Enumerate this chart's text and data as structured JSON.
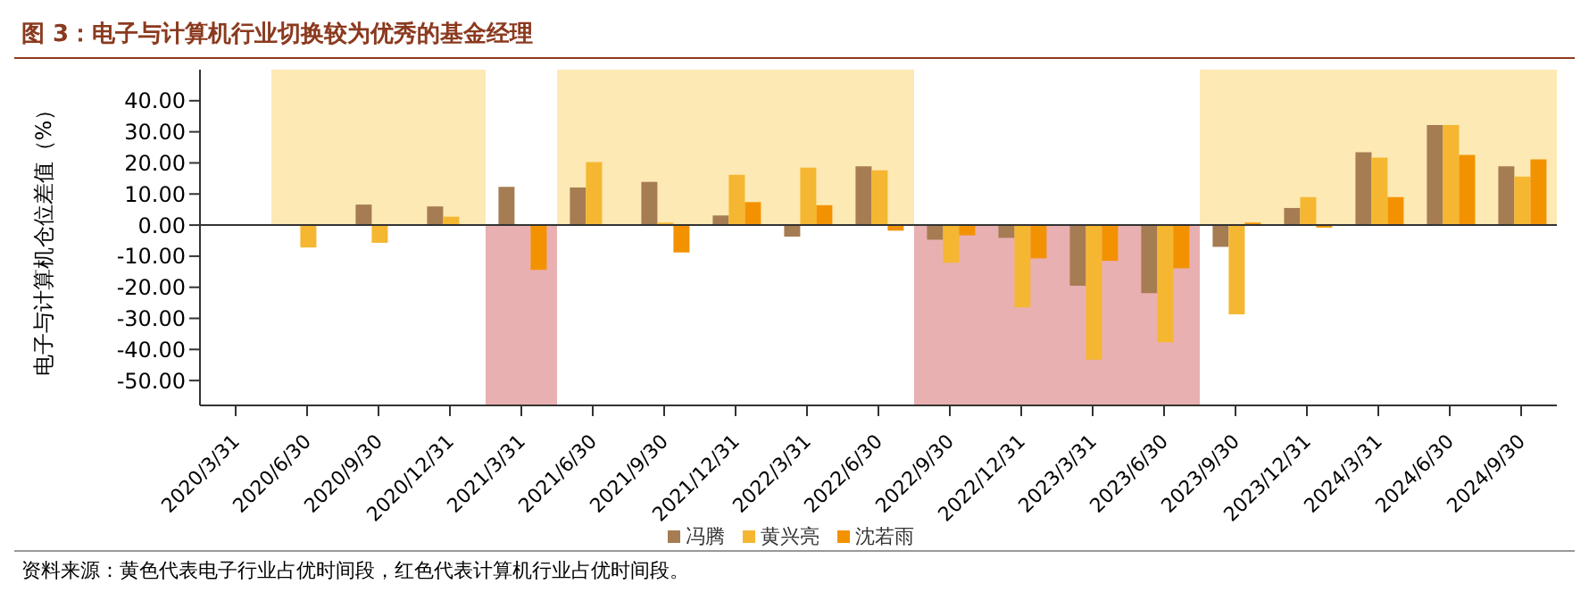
{
  "chart_data": {
    "type": "bar",
    "title": "图 3：电子与计算机行业切换较为优秀的基金经理",
    "ylabel": "电子与计算机仓位差值（%）",
    "categories": [
      "2020/3/31",
      "2020/6/30",
      "2020/9/30",
      "2020/12/31",
      "2021/3/31",
      "2021/6/30",
      "2021/9/30",
      "2021/12/31",
      "2022/3/31",
      "2022/6/30",
      "2022/9/30",
      "2022/12/31",
      "2023/3/31",
      "2023/6/30",
      "2023/9/30",
      "2023/12/31",
      "2024/3/31",
      "2024/6/30",
      "2024/9/30"
    ],
    "series": [
      {
        "name": "冯腾",
        "color": "#a67c52",
        "values": [
          null,
          null,
          6.6,
          6.0,
          12.3,
          12.1,
          13.9,
          3.1,
          -3.7,
          18.9,
          -4.7,
          -4.1,
          -19.5,
          -21.9,
          -7.0,
          5.5,
          23.4,
          32.2,
          18.9
        ]
      },
      {
        "name": "黄兴亮",
        "color": "#f5b731",
        "values": [
          null,
          -7.2,
          -5.7,
          2.7,
          null,
          20.3,
          0.8,
          16.2,
          18.5,
          17.6,
          -12.1,
          -26.5,
          -43.3,
          -37.7,
          -28.7,
          9.0,
          21.7,
          32.2,
          15.6
        ]
      },
      {
        "name": "沈若雨",
        "color": "#f39200",
        "values": [
          null,
          null,
          null,
          null,
          -14.4,
          null,
          -8.8,
          7.4,
          6.4,
          -1.8,
          -3.3,
          -10.7,
          -11.5,
          -13.9,
          0.8,
          -0.8,
          9.0,
          22.6,
          21.1
        ]
      }
    ],
    "ylim": [
      -58,
      50
    ],
    "yticks": [
      {
        "value": -50,
        "label": "-50.00"
      },
      {
        "value": -40,
        "label": "-40.00"
      },
      {
        "value": -30,
        "label": "-30.00"
      },
      {
        "value": -20,
        "label": "-20.00"
      },
      {
        "value": -10,
        "label": "-10.00"
      },
      {
        "value": 0,
        "label": "0.00"
      },
      {
        "value": 10,
        "label": "10.00"
      },
      {
        "value": 20,
        "label": "20.00"
      },
      {
        "value": 30,
        "label": "30.00"
      },
      {
        "value": 40,
        "label": "40.00"
      }
    ],
    "bands": [
      {
        "axis": "x",
        "from": "2020/6/30",
        "to": "2020/12/31",
        "color": "#fde9b3"
      },
      {
        "axis": "x",
        "from": "2021/3/31",
        "to": "2021/3/31",
        "color": "#e9b0b2"
      },
      {
        "axis": "x",
        "from": "2021/6/30",
        "to": "2022/6/30",
        "color": "#fde9b3"
      },
      {
        "axis": "x",
        "from": "2022/9/30",
        "to": "2023/6/30",
        "color": "#e9b0b2"
      },
      {
        "axis": "x",
        "from": "2023/9/30",
        "to": "2024/9/30",
        "color": "#fde9b3"
      }
    ],
    "legend": "bottom",
    "annotations": [
      "资料来源：黄色代表电子行业占优时间段，红色代表计算机行业占优时间段。"
    ]
  }
}
